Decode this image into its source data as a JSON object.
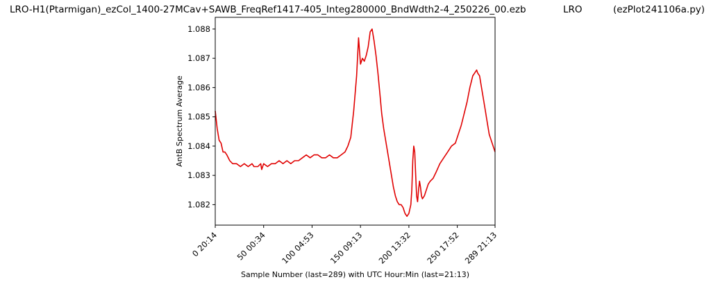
{
  "title": {
    "main": "LRO-H1(Ptarmigan)_ezCol_1400-27MCav+SAWB_FreqRef1417-405_Integ280000_BndWdth2-4_250226_00.ezb",
    "observatory": "LRO",
    "script": "(ezPlot241106a.py)"
  },
  "chart_data": {
    "type": "line",
    "xlabel": "Sample Number (last=289) with UTC Hour:Min (last=21:13)",
    "ylabel": "AntB Spectrum Average",
    "xlim": [
      0,
      289
    ],
    "ylim": [
      1.0813,
      1.0884
    ],
    "x_ticks": [
      {
        "value": 0,
        "label": "0  20:14"
      },
      {
        "value": 50,
        "label": "50  00:34"
      },
      {
        "value": 100,
        "label": "100  04:53"
      },
      {
        "value": 150,
        "label": "150  09:13"
      },
      {
        "value": 200,
        "label": "200  13:32"
      },
      {
        "value": 250,
        "label": "250  17:52"
      },
      {
        "value": 289,
        "label": "289  21:13"
      }
    ],
    "y_ticks": [
      {
        "value": 1.082,
        "label": "1.082"
      },
      {
        "value": 1.083,
        "label": "1.083"
      },
      {
        "value": 1.084,
        "label": "1.084"
      },
      {
        "value": 1.085,
        "label": "1.085"
      },
      {
        "value": 1.086,
        "label": "1.086"
      },
      {
        "value": 1.087,
        "label": "1.087"
      },
      {
        "value": 1.088,
        "label": "1.088"
      }
    ],
    "grid": false,
    "series": [
      {
        "color": "#e00000",
        "points": [
          [
            0,
            1.0852
          ],
          [
            2,
            1.0846
          ],
          [
            4,
            1.0842
          ],
          [
            6,
            1.0841
          ],
          [
            8,
            1.0838
          ],
          [
            10,
            1.0838
          ],
          [
            12,
            1.0837
          ],
          [
            15,
            1.0835
          ],
          [
            18,
            1.0834
          ],
          [
            22,
            1.0834
          ],
          [
            26,
            1.0833
          ],
          [
            30,
            1.0834
          ],
          [
            34,
            1.0833
          ],
          [
            38,
            1.0834
          ],
          [
            40,
            1.0833
          ],
          [
            44,
            1.0833
          ],
          [
            47,
            1.0834
          ],
          [
            48,
            1.0832
          ],
          [
            50,
            1.0834
          ],
          [
            54,
            1.0833
          ],
          [
            58,
            1.0834
          ],
          [
            62,
            1.0834
          ],
          [
            66,
            1.0835
          ],
          [
            70,
            1.0834
          ],
          [
            74,
            1.0835
          ],
          [
            78,
            1.0834
          ],
          [
            82,
            1.0835
          ],
          [
            86,
            1.0835
          ],
          [
            90,
            1.0836
          ],
          [
            94,
            1.0837
          ],
          [
            98,
            1.0836
          ],
          [
            102,
            1.0837
          ],
          [
            106,
            1.0837
          ],
          [
            110,
            1.0836
          ],
          [
            114,
            1.0836
          ],
          [
            118,
            1.0837
          ],
          [
            122,
            1.0836
          ],
          [
            126,
            1.0836
          ],
          [
            130,
            1.0837
          ],
          [
            134,
            1.0838
          ],
          [
            137,
            1.084
          ],
          [
            140,
            1.0843
          ],
          [
            143,
            1.0852
          ],
          [
            146,
            1.0864
          ],
          [
            148,
            1.0877
          ],
          [
            150,
            1.0868
          ],
          [
            152,
            1.087
          ],
          [
            154,
            1.0869
          ],
          [
            156,
            1.0871
          ],
          [
            158,
            1.0874
          ],
          [
            160,
            1.0879
          ],
          [
            162,
            1.088
          ],
          [
            164,
            1.0876
          ],
          [
            166,
            1.0871
          ],
          [
            168,
            1.0865
          ],
          [
            170,
            1.0858
          ],
          [
            172,
            1.0851
          ],
          [
            174,
            1.0846
          ],
          [
            176,
            1.0842
          ],
          [
            178,
            1.0838
          ],
          [
            180,
            1.0834
          ],
          [
            182,
            1.083
          ],
          [
            184,
            1.0826
          ],
          [
            186,
            1.0823
          ],
          [
            188,
            1.0821
          ],
          [
            190,
            1.082
          ],
          [
            192,
            1.082
          ],
          [
            194,
            1.0819
          ],
          [
            196,
            1.0817
          ],
          [
            198,
            1.0816
          ],
          [
            200,
            1.0817
          ],
          [
            202,
            1.082
          ],
          [
            203,
            1.0825
          ],
          [
            204,
            1.0835
          ],
          [
            205,
            1.084
          ],
          [
            206,
            1.0838
          ],
          [
            207,
            1.083
          ],
          [
            208,
            1.0823
          ],
          [
            209,
            1.0821
          ],
          [
            210,
            1.0825
          ],
          [
            211,
            1.0828
          ],
          [
            212,
            1.0826
          ],
          [
            213,
            1.0823
          ],
          [
            214,
            1.0822
          ],
          [
            216,
            1.0823
          ],
          [
            218,
            1.0825
          ],
          [
            220,
            1.0827
          ],
          [
            222,
            1.0828
          ],
          [
            225,
            1.0829
          ],
          [
            228,
            1.0831
          ],
          [
            232,
            1.0834
          ],
          [
            236,
            1.0836
          ],
          [
            240,
            1.0838
          ],
          [
            244,
            1.084
          ],
          [
            248,
            1.0841
          ],
          [
            251,
            1.0844
          ],
          [
            254,
            1.0847
          ],
          [
            257,
            1.0851
          ],
          [
            260,
            1.0855
          ],
          [
            263,
            1.086
          ],
          [
            266,
            1.0864
          ],
          [
            268,
            1.0865
          ],
          [
            270,
            1.0866
          ],
          [
            271,
            1.0865
          ],
          [
            273,
            1.0864
          ],
          [
            275,
            1.086
          ],
          [
            277,
            1.0856
          ],
          [
            279,
            1.0852
          ],
          [
            281,
            1.0848
          ],
          [
            283,
            1.0844
          ],
          [
            285,
            1.0842
          ],
          [
            287,
            1.084
          ],
          [
            289,
            1.0838
          ]
        ]
      }
    ]
  }
}
